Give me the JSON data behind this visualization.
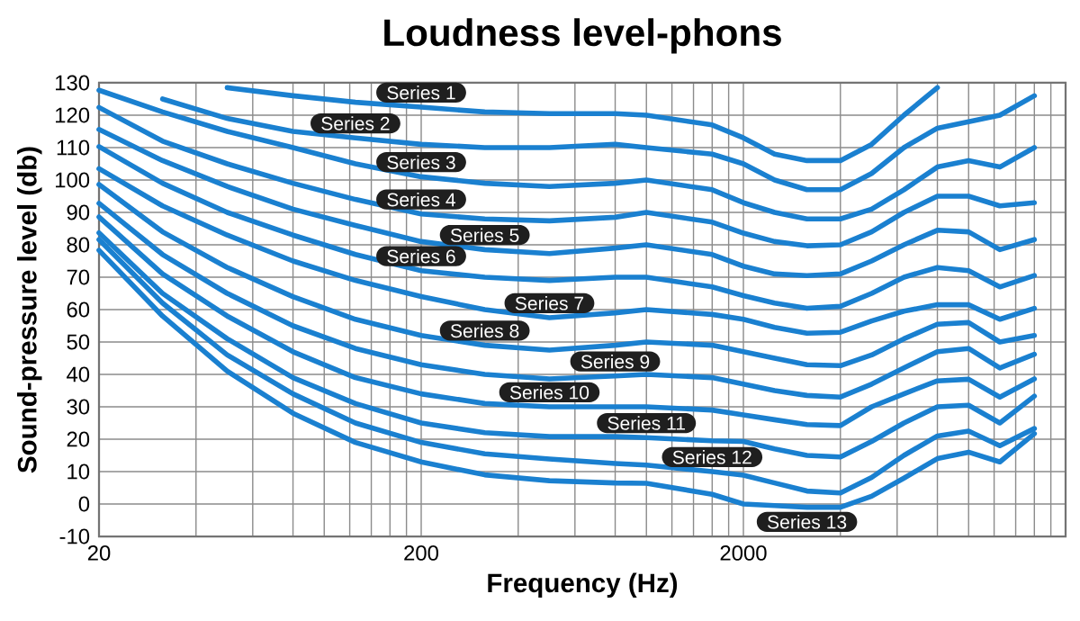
{
  "chart_data": {
    "type": "line",
    "title": "Loudness level-phons",
    "xlabel": "Frequency (Hz)",
    "ylabel": "Sound-pressure level (db)",
    "x": [
      20,
      31.5,
      50,
      80,
      125,
      200,
      315,
      500,
      800,
      1000,
      1600,
      2000,
      2500,
      3150,
      4000,
      5000,
      6300,
      8000,
      10000,
      12500,
      16000
    ],
    "series": [
      {
        "name": "Series 1",
        "color": "#1a80d0",
        "values": [
          null,
          null,
          128.5,
          126,
          124,
          122.5,
          121,
          120.5,
          120.5,
          120,
          117,
          113,
          108,
          106,
          106,
          111,
          120,
          128.5,
          null,
          null,
          null
        ]
      },
      {
        "name": "Series 2",
        "color": "#1a80d0",
        "values": [
          null,
          125,
          119,
          115,
          113,
          111,
          110,
          110,
          111,
          110,
          108,
          105,
          100,
          97,
          97,
          102,
          110,
          116,
          118,
          120,
          126
        ]
      },
      {
        "name": "Series 3",
        "color": "#1a80d0",
        "values": [
          127.7,
          121,
          115,
          110,
          105,
          101,
          99,
          98,
          99,
          100,
          97,
          93,
          90,
          88,
          88,
          91,
          97,
          104,
          106,
          104,
          110
        ]
      },
      {
        "name": "Series 4",
        "color": "#1a80d0",
        "values": [
          122.4,
          112,
          105,
          99,
          94,
          89.5,
          88,
          87.4,
          88.5,
          90,
          87,
          83.6,
          81,
          79.7,
          80,
          84,
          90,
          95,
          95,
          92,
          93
        ]
      },
      {
        "name": "Series 5",
        "color": "#1a80d0",
        "values": [
          115.6,
          106,
          98,
          91,
          86,
          81,
          78.5,
          77.3,
          79,
          80,
          77,
          73.4,
          71,
          70.5,
          71,
          75,
          80,
          84.5,
          84,
          78.5,
          81.6
        ]
      },
      {
        "name": "Series 6",
        "color": "#1a80d0",
        "values": [
          110.3,
          99,
          90,
          83,
          77,
          72,
          70,
          69,
          70,
          70,
          67,
          64.3,
          62,
          60.4,
          61,
          65,
          70,
          73,
          72,
          67,
          70.5
        ]
      },
      {
        "name": "Series 7",
        "color": "#1a80d0",
        "values": [
          103.5,
          92,
          83,
          75,
          69,
          64,
          60,
          57.5,
          59,
          60,
          58.5,
          57,
          54.5,
          52.7,
          53,
          56.5,
          59.5,
          61.5,
          61.5,
          57,
          60.4
        ]
      },
      {
        "name": "Series 8",
        "color": "#1a80d0",
        "values": [
          98.6,
          84,
          73,
          64,
          57,
          52,
          49,
          47.5,
          49,
          50,
          49,
          47,
          45,
          43,
          42.7,
          46,
          51,
          55.5,
          56,
          50,
          52
        ]
      },
      {
        "name": "Series 9",
        "color": "#1a80d0",
        "values": [
          92.8,
          77,
          65,
          55,
          48,
          43,
          40,
          38.6,
          39.5,
          40,
          39,
          37,
          35,
          33.5,
          33,
          37,
          42,
          47,
          48,
          42,
          46.2
        ]
      },
      {
        "name": "Series 10",
        "color": "#1a80d0",
        "values": [
          88.6,
          71,
          58,
          47,
          39,
          34,
          31,
          30,
          30,
          30,
          29,
          27.5,
          26,
          24.5,
          24.2,
          30,
          34,
          38,
          38.5,
          33,
          38.6
        ]
      },
      {
        "name": "Series 11",
        "color": "#1a80d0",
        "values": [
          83.7,
          65,
          51,
          39,
          31,
          25,
          22,
          20.8,
          20.8,
          20.5,
          19.5,
          19.3,
          17,
          15,
          14.5,
          19.3,
          25,
          30,
          30.5,
          25,
          33.3
        ]
      },
      {
        "name": "Series 12",
        "color": "#1a80d0",
        "values": [
          81.6,
          62,
          46,
          34,
          25,
          19,
          15.5,
          13.9,
          12.5,
          12,
          10,
          8.9,
          6.5,
          4,
          3.4,
          8.2,
          15,
          21,
          22.5,
          18,
          23.3
        ]
      },
      {
        "name": "Series 13",
        "color": "#1a80d0",
        "values": [
          78.3,
          58,
          41,
          28,
          19,
          13,
          9,
          7.2,
          6.5,
          6.4,
          3,
          0,
          -0.5,
          -1,
          -1,
          2.4,
          8,
          14,
          16,
          13,
          21.7
        ]
      }
    ],
    "xlim": [
      20,
      20000
    ],
    "ylim": [
      -10,
      130
    ],
    "xticks": [
      20,
      {
        "value": 40,
        "label": null
      },
      {
        "value": 60,
        "label": null
      },
      {
        "value": 80,
        "label": null
      },
      {
        "value": 100,
        "label": null
      },
      {
        "value": 120,
        "label": null
      },
      {
        "value": 140,
        "label": null
      },
      {
        "value": 160,
        "label": null
      },
      {
        "value": 180,
        "label": null
      },
      200,
      {
        "value": 400,
        "label": null
      },
      {
        "value": 600,
        "label": null
      },
      {
        "value": 800,
        "label": null
      },
      {
        "value": 1000,
        "label": null
      },
      {
        "value": 1200,
        "label": null
      },
      {
        "value": 1400,
        "label": null
      },
      {
        "value": 1600,
        "label": null
      },
      {
        "value": 1800,
        "label": null
      },
      2000,
      {
        "value": 4000,
        "label": null
      },
      {
        "value": 6000,
        "label": null
      },
      {
        "value": 8000,
        "label": null
      },
      {
        "value": 10000,
        "label": null
      },
      {
        "value": 12000,
        "label": null
      },
      {
        "value": 14000,
        "label": null
      },
      {
        "value": 16000,
        "label": null
      },
      {
        "value": 18000,
        "label": null
      },
      {
        "value": 20000,
        "label": null
      }
    ],
    "yticks": [
      -10,
      0,
      10,
      20,
      30,
      40,
      50,
      60,
      70,
      80,
      90,
      100,
      110,
      120,
      130
    ],
    "grid": true,
    "legend": false,
    "log": "x",
    "line_style": "solid"
  }
}
